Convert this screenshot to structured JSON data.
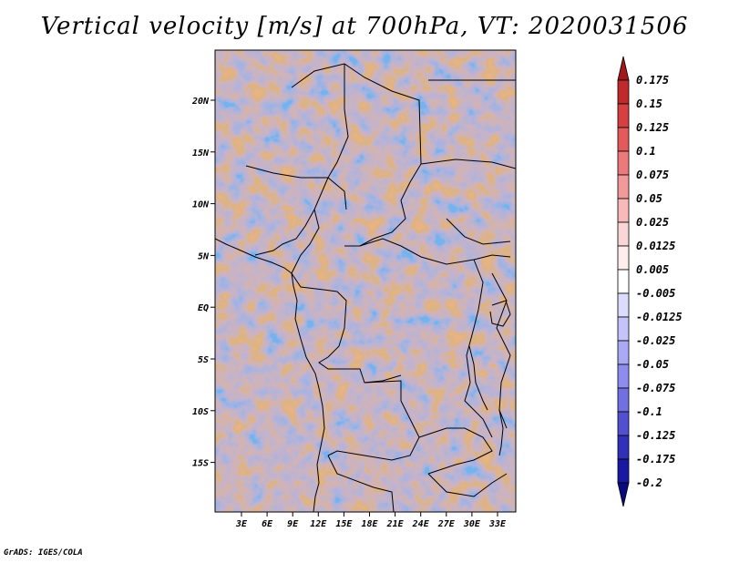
{
  "title": "Vertical velocity [m/s] at 700hPa, VT: 2020031506",
  "footer": "GrADS: IGES/COLA",
  "map": {
    "lon_labels": [
      "3E",
      "6E",
      "9E",
      "12E",
      "15E",
      "18E",
      "21E",
      "24E",
      "27E",
      "30E",
      "33E"
    ],
    "lat_labels": [
      "20N",
      "15N",
      "10N",
      "5N",
      "EQ",
      "5S",
      "10S",
      "15S"
    ]
  },
  "colorbar": {
    "labels": [
      "0.175",
      "0.15",
      "0.125",
      "0.1",
      "0.075",
      "0.05",
      "0.025",
      "0.0125",
      "0.005",
      "-0.005",
      "-0.0125",
      "-0.025",
      "-0.05",
      "-0.075",
      "-0.1",
      "-0.125",
      "-0.175",
      "-0.2"
    ],
    "colors": [
      "#a01818",
      "#c02a2a",
      "#d64040",
      "#e25a5a",
      "#ec7a7a",
      "#f29a9a",
      "#f7b9b9",
      "#fbd6d6",
      "#fdeded",
      "#ffffff",
      "#dcdcff",
      "#c4c4fb",
      "#a9a9f5",
      "#8d8ded",
      "#7070e0",
      "#5050d0",
      "#3030b8",
      "#1818a0",
      "#0a0a80"
    ]
  }
}
